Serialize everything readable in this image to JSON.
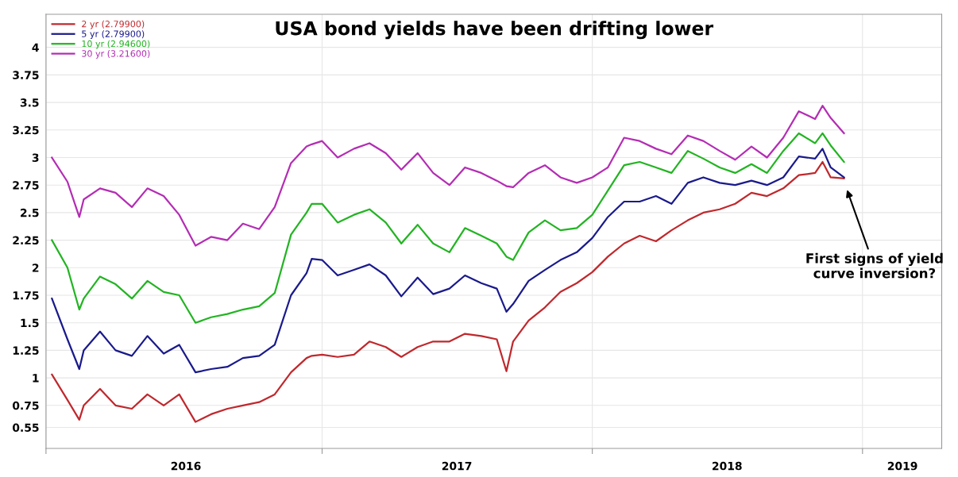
{
  "chart_data": {
    "type": "line",
    "title": "USA bond yields have been drifting lower",
    "x": [
      "2016-01-02",
      "2016-01-23",
      "2016-02-08",
      "2016-02-14",
      "2016-03-07",
      "2016-03-28",
      "2016-04-19",
      "2016-05-10",
      "2016-06-01",
      "2016-06-22",
      "2016-07-14",
      "2016-08-04",
      "2016-08-26",
      "2016-09-16",
      "2016-10-08",
      "2016-10-29",
      "2016-11-20",
      "2016-12-11",
      "2016-12-18",
      "2017-01-01",
      "2017-01-22",
      "2017-02-13",
      "2017-03-06",
      "2017-03-28",
      "2017-04-18",
      "2017-05-10",
      "2017-05-31",
      "2017-06-22",
      "2017-07-13",
      "2017-08-04",
      "2017-08-25",
      "2017-09-07",
      "2017-09-16",
      "2017-10-07",
      "2017-10-29",
      "2017-11-19",
      "2017-12-11",
      "2018-01-01",
      "2018-01-22",
      "2018-02-13",
      "2018-03-06",
      "2018-03-28",
      "2018-04-18",
      "2018-05-10",
      "2018-05-31",
      "2018-06-22",
      "2018-07-13",
      "2018-08-04",
      "2018-08-25",
      "2018-09-16",
      "2018-10-07",
      "2018-10-29",
      "2018-11-08",
      "2018-11-19",
      "2018-12-07"
    ],
    "series": [
      {
        "name": "2 yr (2.79900)",
        "color": "#c0282d",
        "values": [
          1.03,
          0.8,
          0.62,
          0.75,
          0.9,
          0.75,
          0.72,
          0.85,
          0.75,
          0.85,
          0.6,
          0.67,
          0.72,
          0.75,
          0.78,
          0.85,
          1.05,
          1.18,
          1.2,
          1.21,
          1.19,
          1.21,
          1.33,
          1.28,
          1.19,
          1.28,
          1.33,
          1.33,
          1.4,
          1.38,
          1.35,
          1.06,
          1.33,
          1.52,
          1.64,
          1.78,
          1.86,
          1.96,
          2.1,
          2.22,
          2.29,
          2.24,
          2.34,
          2.43,
          2.5,
          2.53,
          2.58,
          2.68,
          2.65,
          2.72,
          2.84,
          2.86,
          2.96,
          2.82,
          2.81
        ]
      },
      {
        "name": "5 yr (2.79900)",
        "color": "#1a1a8c",
        "values": [
          1.72,
          1.35,
          1.08,
          1.25,
          1.42,
          1.25,
          1.2,
          1.38,
          1.22,
          1.3,
          1.05,
          1.08,
          1.1,
          1.18,
          1.2,
          1.3,
          1.75,
          1.95,
          2.08,
          2.07,
          1.93,
          1.98,
          2.03,
          1.93,
          1.74,
          1.91,
          1.76,
          1.81,
          1.93,
          1.86,
          1.81,
          1.6,
          1.67,
          1.88,
          1.98,
          2.07,
          2.14,
          2.27,
          2.46,
          2.6,
          2.6,
          2.65,
          2.58,
          2.77,
          2.82,
          2.77,
          2.75,
          2.79,
          2.75,
          2.82,
          3.01,
          2.99,
          3.08,
          2.91,
          2.82
        ]
      },
      {
        "name": "10 yr (2.94600)",
        "color": "#22b422",
        "values": [
          2.25,
          2.0,
          1.62,
          1.72,
          1.92,
          1.85,
          1.72,
          1.88,
          1.78,
          1.75,
          1.5,
          1.55,
          1.58,
          1.62,
          1.65,
          1.77,
          2.3,
          2.5,
          2.58,
          2.58,
          2.41,
          2.48,
          2.53,
          2.41,
          2.22,
          2.39,
          2.22,
          2.14,
          2.36,
          2.29,
          2.22,
          2.1,
          2.07,
          2.32,
          2.43,
          2.34,
          2.36,
          2.48,
          2.7,
          2.93,
          2.96,
          2.91,
          2.86,
          3.06,
          2.99,
          2.91,
          2.86,
          2.94,
          2.86,
          3.06,
          3.22,
          3.13,
          3.22,
          3.11,
          2.96
        ]
      },
      {
        "name": "30 yr (3.21600)",
        "color": "#b42db4",
        "values": [
          3.0,
          2.78,
          2.46,
          2.62,
          2.72,
          2.68,
          2.55,
          2.72,
          2.65,
          2.48,
          2.2,
          2.28,
          2.25,
          2.4,
          2.35,
          2.55,
          2.95,
          3.1,
          3.12,
          3.15,
          3.0,
          3.08,
          3.13,
          3.04,
          2.89,
          3.04,
          2.86,
          2.75,
          2.91,
          2.86,
          2.79,
          2.74,
          2.73,
          2.86,
          2.93,
          2.82,
          2.77,
          2.82,
          2.91,
          3.18,
          3.15,
          3.08,
          3.03,
          3.2,
          3.15,
          3.06,
          2.98,
          3.1,
          3.0,
          3.18,
          3.42,
          3.35,
          3.47,
          3.36,
          3.22
        ]
      }
    ],
    "xlim": [
      "2015-12-25",
      "2019-04-18"
    ],
    "xticks": [
      {
        "value": "2015-12-25",
        "label": null
      },
      {
        "value": "2016-07-01",
        "label": "2016"
      },
      {
        "value": "2017-01-01",
        "label": null
      },
      {
        "value": "2017-07-02",
        "label": "2017"
      },
      {
        "value": "2018-01-01",
        "label": null
      },
      {
        "value": "2018-07-02",
        "label": "2018"
      },
      {
        "value": "2019-01-01",
        "label": null
      },
      {
        "value": "2019-02-24",
        "label": "2019"
      }
    ],
    "ylim": [
      0.36,
      4.3
    ],
    "yticks": [
      0.55,
      0.75,
      1,
      1.25,
      1.5,
      1.75,
      2,
      2.25,
      2.5,
      2.75,
      3,
      3.25,
      3.5,
      3.75,
      4
    ],
    "grid": true,
    "legend": "top left",
    "marker": "none",
    "line_style": "solid",
    "annotations": [
      "First signs of yield\ncurve inversion?"
    ]
  }
}
